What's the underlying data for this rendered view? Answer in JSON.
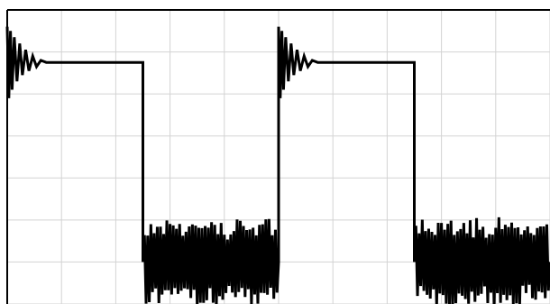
{
  "chart_data": {
    "type": "line",
    "title": "",
    "xlabel": "",
    "ylabel": "",
    "xlim": [
      0,
      10
    ],
    "ylim": [
      -0.2,
      1.2
    ],
    "grid": true,
    "x_gridlines": [
      0,
      1,
      2,
      3,
      4,
      5,
      6,
      7,
      8,
      9,
      10
    ],
    "y_gridlines": [
      -0.2,
      0,
      0.2,
      0.4,
      0.6,
      0.8,
      1.0,
      1.2
    ],
    "line_color": "#000000",
    "grid_color": "#d3d3d3",
    "period": 5,
    "high_level": 0.95,
    "high_duration": 2.5,
    "low_level": 0.0,
    "low_oscillation_amplitude": 0.21,
    "ringing_initial_amplitude": 0.17,
    "series": [
      {
        "points": [
          {
            "x": 0.0,
            "y": 1.12
          },
          {
            "x": 0.03,
            "y": 0.78
          },
          {
            "x": 0.06,
            "y": 1.1
          },
          {
            "x": 0.09,
            "y": 0.82
          },
          {
            "x": 0.13,
            "y": 1.07
          },
          {
            "x": 0.18,
            "y": 0.86
          },
          {
            "x": 0.23,
            "y": 1.04
          },
          {
            "x": 0.28,
            "y": 0.89
          },
          {
            "x": 0.34,
            "y": 1.01
          },
          {
            "x": 0.4,
            "y": 0.91
          },
          {
            "x": 0.47,
            "y": 0.98
          },
          {
            "x": 0.54,
            "y": 0.93
          },
          {
            "x": 0.62,
            "y": 0.96
          },
          {
            "x": 0.72,
            "y": 0.95
          },
          {
            "x": 2.5,
            "y": 0.95
          },
          {
            "x": 2.5,
            "y": 0.0
          },
          {
            "x": 5.0,
            "y": 0.0
          },
          {
            "x": 5.0,
            "y": 1.12
          },
          {
            "x": 5.03,
            "y": 0.78
          },
          {
            "x": 5.06,
            "y": 1.1
          },
          {
            "x": 5.09,
            "y": 0.82
          },
          {
            "x": 5.13,
            "y": 1.07
          },
          {
            "x": 5.18,
            "y": 0.86
          },
          {
            "x": 5.23,
            "y": 1.04
          },
          {
            "x": 5.28,
            "y": 0.89
          },
          {
            "x": 5.34,
            "y": 1.01
          },
          {
            "x": 5.4,
            "y": 0.91
          },
          {
            "x": 5.47,
            "y": 0.98
          },
          {
            "x": 5.54,
            "y": 0.93
          },
          {
            "x": 5.62,
            "y": 0.96
          },
          {
            "x": 5.72,
            "y": 0.95
          },
          {
            "x": 7.5,
            "y": 0.95
          },
          {
            "x": 7.5,
            "y": 0.0
          },
          {
            "x": 10.0,
            "y": 0.0
          }
        ]
      }
    ]
  }
}
